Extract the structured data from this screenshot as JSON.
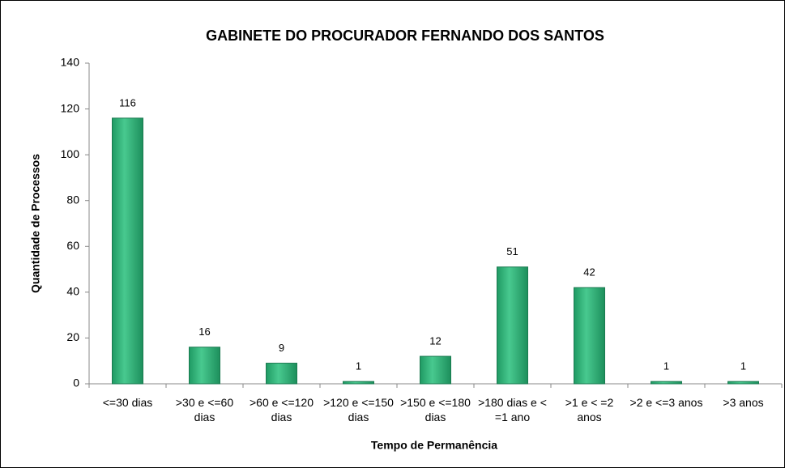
{
  "chart_data": {
    "type": "bar",
    "title": "GABINETE DO PROCURADOR FERNANDO DOS SANTOS",
    "x_label": "Tempo de Permanência",
    "y_label": "Quantidade de Processos",
    "categories": [
      "<=30 dias",
      ">30 e <=60 dias",
      ">60 e <=120 dias",
      ">120 e <=150 dias",
      ">150 e <=180 dias",
      ">180 dias e < =1 ano",
      ">1 e < =2 anos",
      ">2 e <=3 anos",
      ">3 anos"
    ],
    "values": [
      116,
      16,
      9,
      1,
      12,
      51,
      42,
      1,
      1
    ],
    "color": "#2fb57c",
    "ylim": [
      0,
      140
    ],
    "yticks": [
      0,
      20,
      40,
      60,
      80,
      100,
      120,
      140
    ],
    "grid": false
  }
}
